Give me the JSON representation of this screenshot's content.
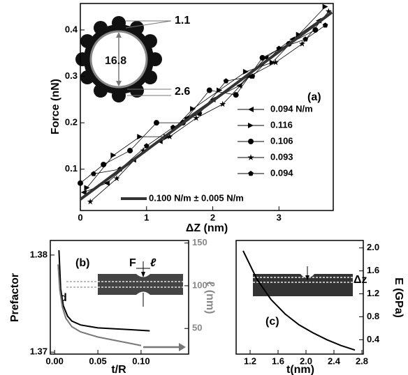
{
  "chart_data": [
    {
      "type": "line",
      "x_label": "ΔZ (nm)",
      "y_label": "Force (nN)",
      "xlim": [
        0,
        3.82
      ],
      "ylim": [
        0.011,
        0.457
      ],
      "xticks": [
        0,
        1,
        2,
        3
      ],
      "yticks": [
        0.1,
        0.2,
        0.3,
        0.4
      ],
      "legend": "lower right",
      "annotations": [
        "(a)",
        "1.1",
        "16.8",
        "2.6"
      ],
      "series": [
        {
          "name": "0.094 N/m",
          "marker": "triangle-left",
          "color": "#000000",
          "x": [
            0.05,
            0.4,
            0.8,
            1.2,
            1.6,
            2.0,
            2.4,
            2.8,
            3.2,
            3.6
          ],
          "values": [
            0.05,
            0.07,
            0.12,
            0.16,
            0.21,
            0.25,
            0.28,
            0.34,
            0.38,
            0.42
          ]
        },
        {
          "name": "0.116",
          "marker": "triangle-right",
          "color": "#000000",
          "x": [
            0.1,
            0.5,
            0.9,
            1.3,
            1.7,
            2.1,
            2.5,
            2.9,
            3.3,
            3.7
          ],
          "values": [
            0.06,
            0.13,
            0.17,
            0.17,
            0.23,
            0.27,
            0.31,
            0.33,
            0.39,
            0.45
          ]
        },
        {
          "name": "0.106",
          "marker": "circle",
          "color": "#000000",
          "x": [
            0.0,
            0.35,
            0.75,
            1.15,
            1.55,
            1.95,
            2.35,
            2.75,
            3.15,
            3.55
          ],
          "values": [
            0.07,
            0.11,
            0.14,
            0.2,
            0.2,
            0.27,
            0.26,
            0.34,
            0.37,
            0.4
          ]
        },
        {
          "name": "0.093",
          "marker": "star",
          "color": "#000000",
          "x": [
            0.15,
            0.55,
            0.95,
            1.35,
            1.75,
            2.15,
            2.55,
            2.95,
            3.35,
            3.75
          ],
          "values": [
            0.03,
            0.08,
            0.14,
            0.17,
            0.21,
            0.24,
            0.3,
            0.33,
            0.37,
            0.44
          ]
        },
        {
          "name": "0.094",
          "marker": "pentagon",
          "color": "#000000",
          "x": [
            0.2,
            0.6,
            1.0,
            1.4,
            1.8,
            2.2,
            2.6,
            3.0,
            3.4,
            3.7
          ],
          "values": [
            0.09,
            0.1,
            0.15,
            0.19,
            0.22,
            0.29,
            0.3,
            0.36,
            0.38,
            0.41
          ]
        },
        {
          "name": "0.100 N/m ± 0.005 N/m",
          "color": "#333333",
          "x": [
            0,
            3.8
          ],
          "values": [
            0.035,
            0.438
          ]
        }
      ]
    },
    {
      "type": "line",
      "x_label": "t/R",
      "y_label": "Prefactor",
      "y2_label": "ℓ (nm)",
      "xlim": [
        -0.005,
        0.155
      ],
      "ylim": [
        1.3698,
        1.3815
      ],
      "y2lim": [
        20,
        153
      ],
      "xticks": [
        {
          "value": 0,
          "label": "0.00"
        },
        0.05,
        {
          "value": 0.1,
          "label": "0.10"
        }
      ],
      "yticks": [
        1.37,
        1.38
      ],
      "y2ticks": [
        50,
        100,
        150
      ],
      "annotations": [
        "(b)",
        "F",
        "ℓ",
        "d"
      ],
      "series": [
        {
          "color": "#000000",
          "x": [
            0.005,
            0.007,
            0.01,
            0.015,
            0.02,
            0.03,
            0.05,
            0.07,
            0.09,
            0.11
          ],
          "values": [
            1.3805,
            1.3765,
            1.3748,
            1.3737,
            1.3732,
            1.3728,
            1.3725,
            1.3724,
            1.3723,
            1.3722
          ]
        },
        {
          "color": "#777777",
          "axis": "y2",
          "x": [
            0.004,
            0.006,
            0.009,
            0.013,
            0.02,
            0.03,
            0.05,
            0.07,
            0.09,
            0.1
          ],
          "values": [
            125,
            95,
            75,
            62,
            52,
            46,
            40,
            36,
            32,
            30
          ]
        }
      ]
    },
    {
      "type": "line",
      "x_label": "t(nm)",
      "y2_label": "E (GPa)",
      "xlim": [
        1.0,
        2.82
      ],
      "y2lim": [
        0.15,
        2.13
      ],
      "xticks": [
        1.2,
        1.6,
        {
          "value": 2,
          "label": "2.0"
        },
        2.4,
        2.8
      ],
      "y2ticks": [
        0.4,
        0.8,
        1.2,
        1.6,
        {
          "value": 2,
          "label": "2.0"
        }
      ],
      "annotations": [
        "(c)",
        "Δz"
      ],
      "series": [
        {
          "color": "#000000",
          "axis": "y2",
          "x": [
            1.1,
            1.3,
            1.5,
            1.7,
            1.9,
            2.1,
            2.3,
            2.5,
            2.7
          ],
          "values": [
            1.95,
            1.45,
            1.1,
            0.85,
            0.66,
            0.52,
            0.4,
            0.3,
            0.22
          ]
        }
      ]
    }
  ]
}
